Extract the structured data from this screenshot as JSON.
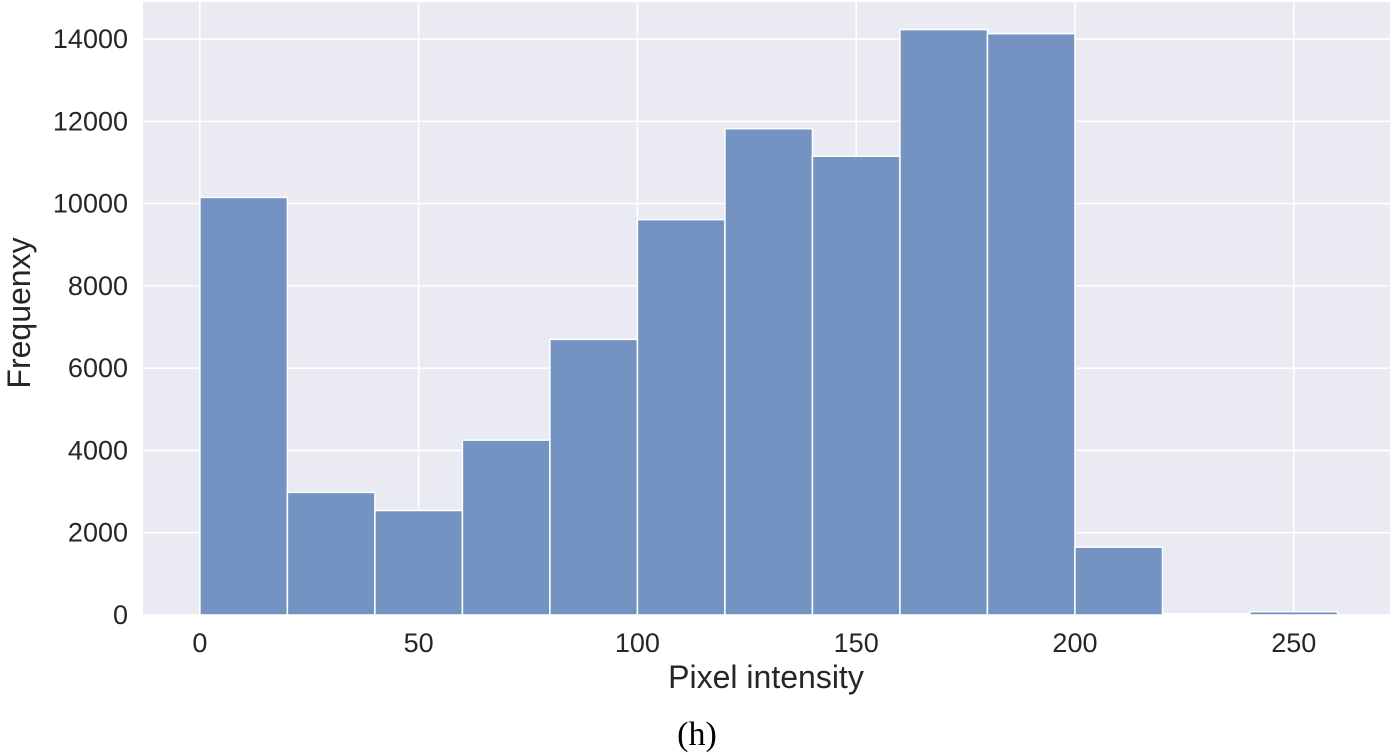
{
  "chart_data": {
    "type": "bar",
    "subtype": "histogram",
    "bin_edges": [
      0,
      20,
      40,
      60,
      80,
      100,
      120,
      140,
      160,
      180,
      200,
      220,
      240,
      260
    ],
    "values": [
      10150,
      2980,
      2540,
      4250,
      6700,
      9610,
      11820,
      11150,
      14230,
      14130,
      1650,
      30,
      80
    ],
    "xlabel": "Pixel intensity",
    "ylabel": "Frequenxy",
    "xlim": [
      -13,
      272
    ],
    "ylim": [
      0,
      14900
    ],
    "xticks": [
      0,
      50,
      100,
      150,
      200,
      250
    ],
    "yticks": [
      0,
      2000,
      4000,
      6000,
      8000,
      10000,
      12000,
      14000
    ],
    "grid": true,
    "background_color": "#eaeaf2",
    "bar_color": "#7593c2",
    "caption": "(h)"
  }
}
